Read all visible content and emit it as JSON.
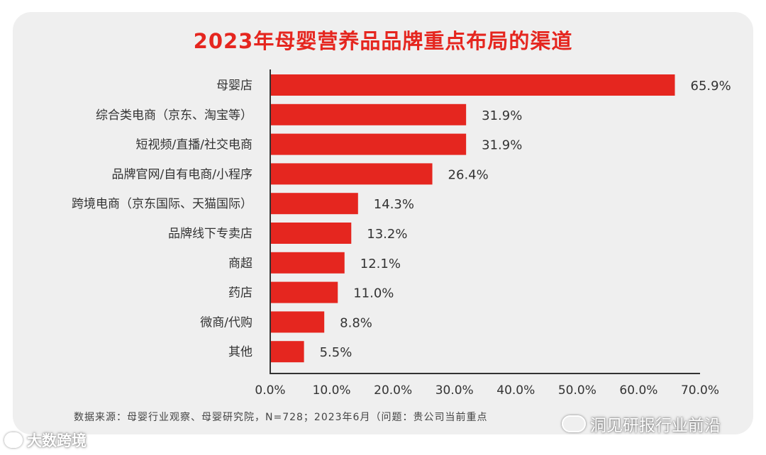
{
  "chart_data": {
    "type": "bar",
    "orientation": "horizontal",
    "title": "2023年母婴营养品品牌重点布局的渠道",
    "categories": [
      "母婴店",
      "综合类电商（京东、淘宝等）",
      "短视频/直播/社交电商",
      "品牌官网/自有电商/小程序",
      "跨境电商（京东国际、天猫国际）",
      "品牌线下专卖店",
      "商超",
      "药店",
      "微商/代购",
      "其他"
    ],
    "values": [
      65.9,
      31.9,
      31.9,
      26.4,
      14.3,
      13.2,
      12.1,
      11.0,
      8.8,
      5.5
    ],
    "value_labels": [
      "65.9%",
      "31.9%",
      "31.9%",
      "26.4%",
      "14.3%",
      "13.2%",
      "12.1%",
      "11.0%",
      "8.8%",
      "5.5%"
    ],
    "xlim": [
      0,
      70
    ],
    "x_ticks": [
      "0.0%",
      "10.0%",
      "20.0%",
      "30.0%",
      "40.0%",
      "50.0%",
      "60.0%",
      "70.0%"
    ],
    "grid": false,
    "bar_color": "#e5261f"
  },
  "source": "数据来源：母婴行业观察、母婴研究院，N=728；2023年6月（问题：贵公司当前重点",
  "watermarks": {
    "left": "大数跨境",
    "right": "洞见研报行业前沿"
  },
  "colors": {
    "title": "#e5261f",
    "card_background": "#efefef"
  }
}
